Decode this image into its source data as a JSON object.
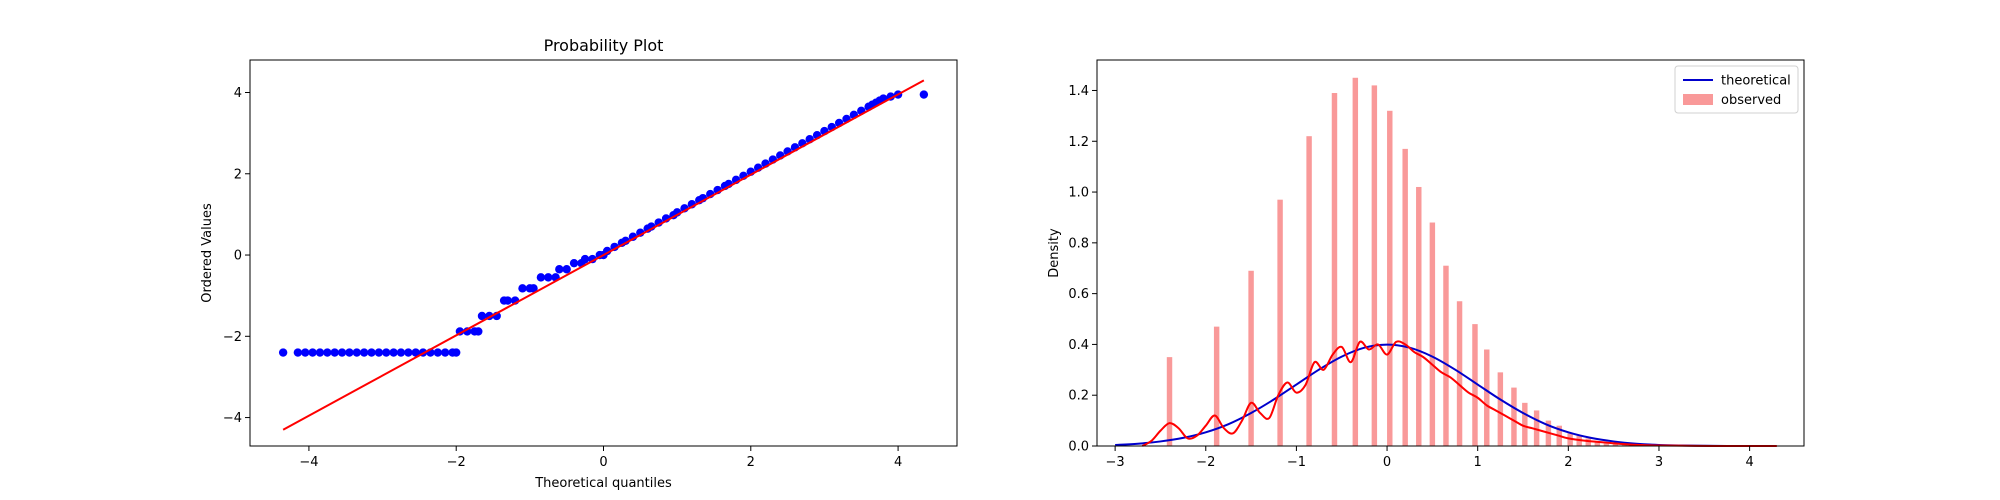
{
  "chart_data": [
    {
      "type": "scatter",
      "title": "Probability Plot",
      "xlabel": "Theoretical quantiles",
      "ylabel": "Ordered Values",
      "xlim": [
        -4.8,
        4.8
      ],
      "ylim": [
        -4.7,
        4.8
      ],
      "xticks": [
        -4,
        -2,
        0,
        2,
        4
      ],
      "yticks": [
        -4,
        -2,
        0,
        2,
        4
      ],
      "grid": false,
      "colors": {
        "points": "#0000ff",
        "fit_line": "#ff0000"
      },
      "fit_line": {
        "x": [
          -4.35,
          4.35
        ],
        "y": [
          -4.3,
          4.3
        ]
      },
      "series": [
        {
          "x": [
            -4.35,
            -4.15,
            -4.05,
            -3.95,
            -3.85,
            -3.75,
            -3.65,
            -3.55,
            -3.45,
            -3.35,
            -3.25,
            -3.15,
            -3.05,
            -2.95,
            -2.85,
            -2.75,
            -2.65,
            -2.55,
            -2.45,
            -2.35,
            -2.25,
            -2.15,
            -2.05,
            -2.0,
            -1.95,
            -1.85,
            -1.75,
            -1.7,
            -1.65,
            -1.55,
            -1.45,
            -1.35,
            -1.3,
            -1.2,
            -1.1,
            -1.0,
            -0.95,
            -0.85,
            -0.75,
            -0.65,
            -0.6,
            -0.5,
            -0.4,
            -0.3,
            -0.25,
            -0.15,
            -0.05,
            0.0,
            0.05,
            0.15,
            0.25,
            0.3,
            0.4,
            0.5,
            0.6,
            0.65,
            0.75,
            0.85,
            0.95,
            1.0,
            1.1,
            1.2,
            1.3,
            1.35,
            1.45,
            1.55,
            1.65,
            1.7,
            1.8,
            1.9,
            2.0,
            2.1,
            2.2,
            2.3,
            2.4,
            2.5,
            2.6,
            2.7,
            2.8,
            2.9,
            3.0,
            3.1,
            3.2,
            3.3,
            3.4,
            3.5,
            3.6,
            3.65,
            3.7,
            3.75,
            3.8,
            3.9,
            4.0,
            4.35
          ],
          "y": [
            -2.4,
            -2.4,
            -2.4,
            -2.4,
            -2.4,
            -2.4,
            -2.4,
            -2.4,
            -2.4,
            -2.4,
            -2.4,
            -2.4,
            -2.4,
            -2.4,
            -2.4,
            -2.4,
            -2.4,
            -2.4,
            -2.4,
            -2.4,
            -2.4,
            -2.4,
            -2.4,
            -2.4,
            -1.88,
            -1.88,
            -1.88,
            -1.88,
            -1.5,
            -1.5,
            -1.5,
            -1.12,
            -1.12,
            -1.12,
            -0.82,
            -0.82,
            -0.82,
            -0.55,
            -0.55,
            -0.55,
            -0.35,
            -0.35,
            -0.2,
            -0.2,
            -0.1,
            -0.1,
            0.0,
            0.0,
            0.1,
            0.2,
            0.3,
            0.35,
            0.45,
            0.55,
            0.65,
            0.7,
            0.8,
            0.9,
            0.98,
            1.05,
            1.15,
            1.25,
            1.35,
            1.4,
            1.5,
            1.6,
            1.7,
            1.75,
            1.85,
            1.95,
            2.05,
            2.15,
            2.25,
            2.35,
            2.45,
            2.55,
            2.65,
            2.75,
            2.85,
            2.95,
            3.05,
            3.15,
            3.25,
            3.35,
            3.45,
            3.55,
            3.65,
            3.7,
            3.75,
            3.8,
            3.85,
            3.9,
            3.95,
            3.95
          ]
        }
      ]
    },
    {
      "type": "bar",
      "title": "",
      "xlabel": "",
      "ylabel": "Density",
      "xlim": [
        -3.2,
        4.6
      ],
      "ylim": [
        0,
        1.52
      ],
      "xticks": [
        -3,
        -2,
        -1,
        0,
        1,
        2,
        3,
        4
      ],
      "yticks": [
        0.0,
        0.2,
        0.4,
        0.6,
        0.8,
        1.0,
        1.2,
        1.4
      ],
      "ytick_labels": [
        "0.0",
        "0.2",
        "0.4",
        "0.6",
        "0.8",
        "1.0",
        "1.2",
        "1.4"
      ],
      "grid": false,
      "legend": {
        "placement": "top-right",
        "entries": [
          "theoretical",
          "observed"
        ]
      },
      "colors": {
        "theoretical": "#0000cc",
        "observed_bars": "#f99999",
        "observed_kde": "#ff0000"
      },
      "bar_width": 0.06,
      "bars": {
        "x": [
          -2.4,
          -1.88,
          -1.5,
          -1.18,
          -0.86,
          -0.58,
          -0.35,
          -0.14,
          0.03,
          0.2,
          0.35,
          0.5,
          0.65,
          0.8,
          0.97,
          1.1,
          1.25,
          1.4,
          1.52,
          1.65,
          1.78,
          1.9,
          2.02,
          2.12,
          2.22,
          2.32,
          2.42,
          2.52,
          2.62,
          2.72
        ],
        "values": [
          0.35,
          0.47,
          0.69,
          0.97,
          1.22,
          1.39,
          1.45,
          1.42,
          1.32,
          1.17,
          1.02,
          0.88,
          0.71,
          0.57,
          0.48,
          0.38,
          0.29,
          0.23,
          0.17,
          0.14,
          0.1,
          0.08,
          0.05,
          0.04,
          0.03,
          0.02,
          0.015,
          0.01,
          0.008,
          0.005
        ]
      },
      "series": [
        {
          "name": "theoretical",
          "x": [
            -3.0,
            -2.75,
            -2.5,
            -2.25,
            -2.0,
            -1.75,
            -1.5,
            -1.25,
            -1.0,
            -0.75,
            -0.5,
            -0.25,
            0.0,
            0.25,
            0.5,
            0.75,
            1.0,
            1.25,
            1.5,
            1.75,
            2.0,
            2.25,
            2.5,
            2.75,
            3.0,
            3.25,
            3.5,
            3.75,
            4.0,
            4.25
          ],
          "values": [
            0.004,
            0.009,
            0.018,
            0.032,
            0.054,
            0.086,
            0.13,
            0.183,
            0.242,
            0.301,
            0.352,
            0.387,
            0.399,
            0.387,
            0.352,
            0.301,
            0.242,
            0.183,
            0.13,
            0.086,
            0.054,
            0.032,
            0.018,
            0.009,
            0.004,
            0.002,
            0.001,
            0.0,
            0.0,
            0.0
          ]
        },
        {
          "name": "observed",
          "x": [
            -2.7,
            -2.6,
            -2.5,
            -2.4,
            -2.3,
            -2.2,
            -2.1,
            -2.0,
            -1.9,
            -1.8,
            -1.7,
            -1.6,
            -1.5,
            -1.4,
            -1.3,
            -1.2,
            -1.1,
            -1.0,
            -0.9,
            -0.8,
            -0.7,
            -0.6,
            -0.5,
            -0.4,
            -0.3,
            -0.2,
            -0.1,
            0.0,
            0.1,
            0.2,
            0.3,
            0.4,
            0.5,
            0.6,
            0.7,
            0.8,
            0.9,
            1.0,
            1.1,
            1.2,
            1.3,
            1.4,
            1.5,
            1.6,
            1.7,
            1.8,
            1.9,
            2.0,
            2.2,
            2.4,
            2.6,
            2.8,
            3.0,
            3.3,
            3.6,
            4.0,
            4.3
          ],
          "values": [
            0.0,
            0.02,
            0.06,
            0.09,
            0.07,
            0.03,
            0.04,
            0.08,
            0.12,
            0.07,
            0.05,
            0.1,
            0.17,
            0.13,
            0.11,
            0.2,
            0.25,
            0.21,
            0.24,
            0.33,
            0.3,
            0.36,
            0.39,
            0.33,
            0.41,
            0.38,
            0.4,
            0.36,
            0.41,
            0.4,
            0.37,
            0.35,
            0.32,
            0.29,
            0.27,
            0.24,
            0.21,
            0.19,
            0.16,
            0.14,
            0.12,
            0.1,
            0.08,
            0.07,
            0.06,
            0.05,
            0.04,
            0.03,
            0.02,
            0.014,
            0.008,
            0.004,
            0.002,
            0.001,
            0.0,
            0.0,
            0.0
          ]
        }
      ]
    }
  ]
}
